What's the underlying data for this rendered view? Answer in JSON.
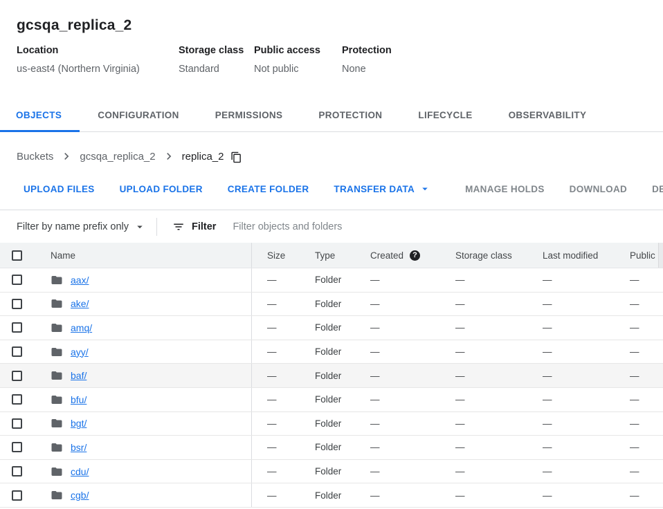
{
  "header": {
    "title": "gcsqa_replica_2",
    "meta": [
      {
        "label": "Location",
        "value": "us-east4 (Northern Virginia)"
      },
      {
        "label": "Storage class",
        "value": "Standard"
      },
      {
        "label": "Public access",
        "value": "Not public"
      },
      {
        "label": "Protection",
        "value": "None"
      }
    ]
  },
  "tabs": [
    {
      "label": "OBJECTS",
      "active": true
    },
    {
      "label": "CONFIGURATION",
      "active": false
    },
    {
      "label": "PERMISSIONS",
      "active": false
    },
    {
      "label": "PROTECTION",
      "active": false
    },
    {
      "label": "LIFECYCLE",
      "active": false
    },
    {
      "label": "OBSERVABILITY",
      "active": false
    }
  ],
  "breadcrumb": {
    "items": [
      {
        "label": "Buckets",
        "current": false
      },
      {
        "label": "gcsqa_replica_2",
        "current": false
      },
      {
        "label": "replica_2",
        "current": true
      }
    ]
  },
  "toolbar": {
    "buttons": [
      {
        "label": "UPLOAD FILES",
        "enabled": true,
        "menu": false
      },
      {
        "label": "UPLOAD FOLDER",
        "enabled": true,
        "menu": false
      },
      {
        "label": "CREATE FOLDER",
        "enabled": true,
        "menu": false
      },
      {
        "label": "TRANSFER DATA",
        "enabled": true,
        "menu": true
      },
      {
        "label": "MANAGE HOLDS",
        "enabled": false,
        "menu": false
      },
      {
        "label": "DOWNLOAD",
        "enabled": false,
        "menu": false
      },
      {
        "label": "DELETE",
        "enabled": false,
        "menu": false
      }
    ]
  },
  "filter_bar": {
    "scope": "Filter by name prefix only",
    "filter_label": "Filter",
    "placeholder": "Filter objects and folders"
  },
  "table": {
    "columns": [
      "Name",
      "Size",
      "Type",
      "Created",
      "Storage class",
      "Last modified",
      "Public access"
    ],
    "rows": [
      {
        "name": "aax/",
        "size": "—",
        "type": "Folder",
        "created": "—",
        "storage_class": "—",
        "last_modified": "—",
        "public_access": "—",
        "highlighted": false
      },
      {
        "name": "ake/",
        "size": "—",
        "type": "Folder",
        "created": "—",
        "storage_class": "—",
        "last_modified": "—",
        "public_access": "—",
        "highlighted": false
      },
      {
        "name": "amq/",
        "size": "—",
        "type": "Folder",
        "created": "—",
        "storage_class": "—",
        "last_modified": "—",
        "public_access": "—",
        "highlighted": false
      },
      {
        "name": "ayy/",
        "size": "—",
        "type": "Folder",
        "created": "—",
        "storage_class": "—",
        "last_modified": "—",
        "public_access": "—",
        "highlighted": false
      },
      {
        "name": "baf/",
        "size": "—",
        "type": "Folder",
        "created": "—",
        "storage_class": "—",
        "last_modified": "—",
        "public_access": "—",
        "highlighted": true
      },
      {
        "name": "bfu/",
        "size": "—",
        "type": "Folder",
        "created": "—",
        "storage_class": "—",
        "last_modified": "—",
        "public_access": "—",
        "highlighted": false
      },
      {
        "name": "bgt/",
        "size": "—",
        "type": "Folder",
        "created": "—",
        "storage_class": "—",
        "last_modified": "—",
        "public_access": "—",
        "highlighted": false
      },
      {
        "name": "bsr/",
        "size": "—",
        "type": "Folder",
        "created": "—",
        "storage_class": "—",
        "last_modified": "—",
        "public_access": "—",
        "highlighted": false
      },
      {
        "name": "cdu/",
        "size": "—",
        "type": "Folder",
        "created": "—",
        "storage_class": "—",
        "last_modified": "—",
        "public_access": "—",
        "highlighted": false
      },
      {
        "name": "cgb/",
        "size": "—",
        "type": "Folder",
        "created": "—",
        "storage_class": "—",
        "last_modified": "—",
        "public_access": "—",
        "highlighted": false
      }
    ]
  },
  "icons": {
    "help_glyph": "?"
  },
  "colors": {
    "accent": "#1a73e8",
    "text_primary": "#202124",
    "text_secondary": "#5f6368",
    "disabled_button": "#80868b",
    "table_header_bg": "#f1f3f4",
    "divider": "#dadce0"
  }
}
